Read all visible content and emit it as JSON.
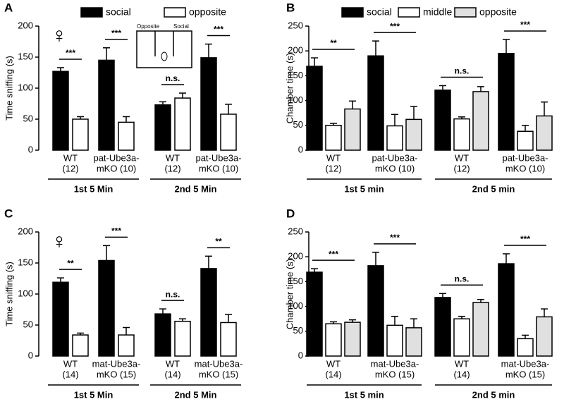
{
  "chart_data": [
    {
      "type": "bar",
      "panel": "A",
      "symbol": "♀",
      "inset_labels": [
        "Opposite",
        "Social"
      ],
      "ylabel": "Time sniffing (s)",
      "ylim": [
        0,
        200
      ],
      "yticks": [
        0,
        50,
        100,
        150,
        200
      ],
      "legend": true,
      "categories": [
        [
          "WT",
          "(12)"
        ],
        [
          "pat-Ube3a-",
          "mKO (10)"
        ],
        [
          "WT",
          "(12)"
        ],
        [
          "pat-Ube3a-",
          "mKO (10)"
        ]
      ],
      "groups": [
        "1st 5 Min",
        "2nd 5 Min"
      ],
      "significance": [
        "***",
        "***",
        "n.s.",
        "***"
      ],
      "series": [
        {
          "name": "social",
          "color": "#000000",
          "values": [
            127,
            145,
            73,
            149
          ],
          "errors": [
            6,
            20,
            5,
            22
          ]
        },
        {
          "name": "opposite",
          "color": "#ffffff",
          "values": [
            50,
            45,
            84,
            58
          ],
          "errors": [
            4,
            9,
            8,
            16
          ]
        }
      ]
    },
    {
      "type": "bar",
      "panel": "B",
      "ylabel": "Chamber time (s)",
      "ylim": [
        0,
        250
      ],
      "yticks": [
        0,
        50,
        100,
        150,
        200,
        250
      ],
      "legend": true,
      "categories": [
        [
          "WT",
          "(12)"
        ],
        [
          "pat-Ube3a-",
          "mKO (10)"
        ],
        [
          "WT",
          "(12)"
        ],
        [
          "pat-Ube3a-",
          "mKO (10)"
        ]
      ],
      "groups": [
        "1st 5 min",
        "2nd 5 min"
      ],
      "significance": [
        "**",
        "***",
        "n.s.",
        "***"
      ],
      "series": [
        {
          "name": "social",
          "color": "#000000",
          "values": [
            169,
            190,
            121,
            195
          ],
          "errors": [
            17,
            30,
            9,
            28
          ]
        },
        {
          "name": "middle",
          "color": "#ffffff",
          "values": [
            50,
            49,
            63,
            38
          ],
          "errors": [
            4,
            23,
            4,
            12
          ]
        },
        {
          "name": "opposite",
          "color": "#e0e0e0",
          "values": [
            83,
            62,
            118,
            69
          ],
          "errors": [
            16,
            26,
            10,
            28
          ]
        }
      ]
    },
    {
      "type": "bar",
      "panel": "C",
      "symbol": "♀",
      "ylabel": "Time sniffing (s)",
      "ylim": [
        0,
        200
      ],
      "yticks": [
        0,
        50,
        100,
        150,
        200
      ],
      "legend": false,
      "categories": [
        [
          "WT",
          "(14)"
        ],
        [
          "mat-Ube3a-",
          "mKO (15)"
        ],
        [
          "WT",
          "(14)"
        ],
        [
          "mat-Ube3a-",
          "mKO (15)"
        ]
      ],
      "groups": [
        "1st 5 Min",
        "2nd 5 Min"
      ],
      "significance": [
        "**",
        "***",
        "n.s.",
        "**"
      ],
      "series": [
        {
          "name": "social",
          "color": "#000000",
          "values": [
            119,
            154,
            68,
            141
          ],
          "errors": [
            7,
            24,
            8,
            20
          ]
        },
        {
          "name": "opposite",
          "color": "#ffffff",
          "values": [
            34,
            34,
            56,
            54
          ],
          "errors": [
            3,
            12,
            4,
            13
          ]
        }
      ]
    },
    {
      "type": "bar",
      "panel": "D",
      "ylabel": "Chamber time (s)",
      "ylim": [
        0,
        250
      ],
      "yticks": [
        0,
        50,
        100,
        150,
        200,
        250
      ],
      "legend": false,
      "categories": [
        [
          "WT",
          "(14)"
        ],
        [
          "mat-Ube3a-",
          "mKO (15)"
        ],
        [
          "WT",
          "(14)"
        ],
        [
          "mat-Ube3a-",
          "mKO (15)"
        ]
      ],
      "groups": [
        "1st 5 min",
        "2nd 5 min"
      ],
      "significance": [
        "***",
        "***",
        "n.s.",
        "***"
      ],
      "series": [
        {
          "name": "social",
          "color": "#000000",
          "values": [
            169,
            182,
            118,
            186
          ],
          "errors": [
            7,
            27,
            8,
            20
          ]
        },
        {
          "name": "middle",
          "color": "#ffffff",
          "values": [
            65,
            62,
            75,
            35
          ],
          "errors": [
            4,
            18,
            5,
            7
          ]
        },
        {
          "name": "opposite",
          "color": "#e0e0e0",
          "values": [
            68,
            57,
            108,
            79
          ],
          "errors": [
            5,
            18,
            6,
            16
          ]
        }
      ]
    }
  ]
}
